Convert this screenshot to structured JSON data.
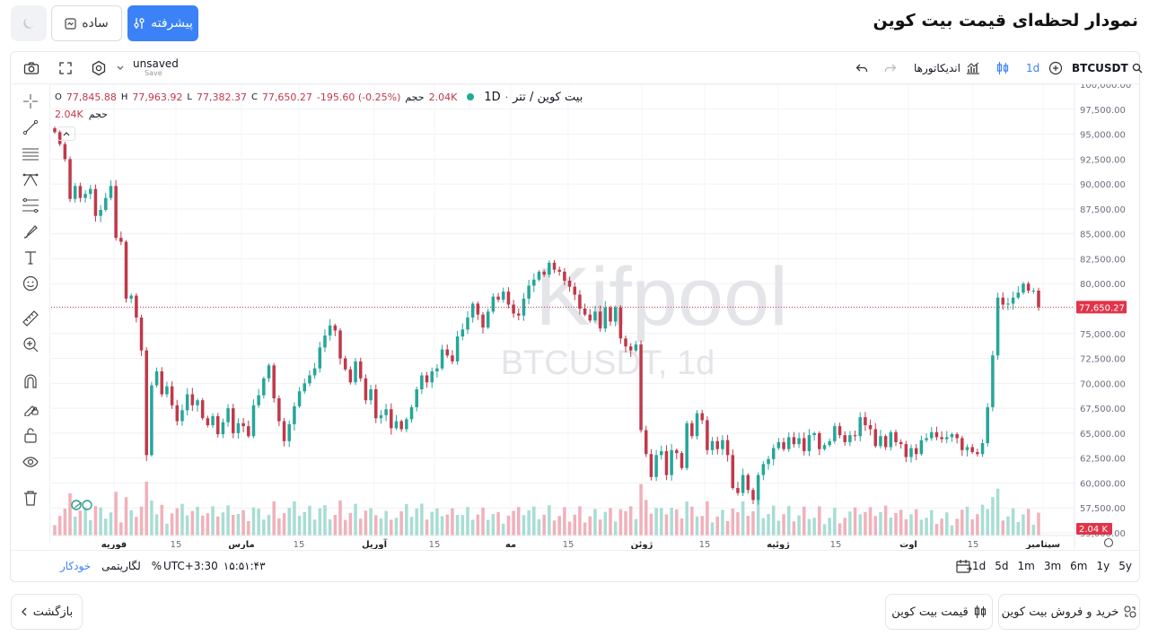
{
  "header": {
    "title": "نمودار لحظه‌ای قیمت بیت کوین",
    "advanced_label": "پیشرفته",
    "simple_label": "ساده"
  },
  "toolbar": {
    "symbol": "BTCUSDT",
    "interval": "1d",
    "indicators_label": "اندیکاتورها",
    "layout_name": "unsaved",
    "save_label": "Save"
  },
  "legend": {
    "pair_name": "بیت کوین / تتر",
    "interval": "1D",
    "open": "77,845.88",
    "open_prefix": "O",
    "high": "77,963.92",
    "high_prefix": "H",
    "low": "77,382.37",
    "low_prefix": "L",
    "close": "77,650.27",
    "close_prefix": "C",
    "change": "-195.60 (-0.25%)",
    "volume_label": "حجم",
    "volume_value": "2.04K",
    "volume_row_label": "حجم",
    "volume_row_value": "2.04K"
  },
  "watermark": {
    "brand": "Kifpool",
    "symbol": "BTCUSDT, 1d"
  },
  "footer": {
    "timeframes": [
      "5y",
      "1y",
      "6m",
      "3m",
      "1m",
      "5d",
      "1d"
    ],
    "timezone": "UTC+3:30",
    "clock": "۱۵:۵۱:۴۳",
    "percent_label": "%",
    "log_label": "لگاریتمی",
    "auto_label": "خودکار"
  },
  "bottom": {
    "back_label": "بازگشت",
    "price_label": "قیمت بیت کوین",
    "trade_label": "خرید و فروش بیت کوین"
  },
  "colors": {
    "accent": "#3b82f6",
    "up": "#26a69a",
    "down": "#c0394a",
    "last_price_bg": "#e0344a"
  },
  "chart_data": {
    "type": "candlestick",
    "y_axis_ticks": [
      "100,000.00",
      "97,500.00",
      "95,000.00",
      "92,500.00",
      "90,000.00",
      "87,500.00",
      "85,000.00",
      "82,500.00",
      "80,000.00",
      "77,500.00",
      "75,000.00",
      "72,500.00",
      "70,000.00",
      "67,500.00",
      "65,000.00",
      "62,500.00",
      "60,000.00",
      "57,500.00",
      "55,000.00"
    ],
    "y_range": [
      55000,
      100000
    ],
    "last_price": 77650.27,
    "last_price_label": "77,650.27",
    "last_volume_label": "2.04 K",
    "x_axis_ticks": [
      "فوریه",
      "15",
      "مارس",
      "15",
      "آوریل",
      "15",
      "مه",
      "15",
      "ژوئن",
      "15",
      "ژوئیه",
      "15",
      "اوت",
      "15",
      "سپتامبر"
    ],
    "closes": [
      95200,
      94000,
      92500,
      88500,
      89800,
      88600,
      89000,
      89500,
      86800,
      87400,
      88600,
      89800,
      84600,
      84200,
      78500,
      78800,
      76600,
      73300,
      62800,
      69800,
      71200,
      68900,
      69700,
      67800,
      66200,
      67300,
      68900,
      67800,
      68300,
      66500,
      65800,
      66700,
      64900,
      66100,
      67500,
      65000,
      66000,
      65700,
      64700,
      67800,
      68800,
      70500,
      71800,
      68500,
      66200,
      64200,
      65900,
      67700,
      69200,
      70000,
      70800,
      71500,
      73600,
      74800,
      75800,
      75300,
      72500,
      71400,
      70100,
      72200,
      70500,
      68300,
      69400,
      66500,
      66800,
      67400,
      65500,
      66200,
      65400,
      66400,
      67600,
      69400,
      70800,
      70100,
      71200,
      71500,
      73400,
      72800,
      72200,
      74700,
      75400,
      76600,
      78000,
      76900,
      75600,
      77200,
      78700,
      78400,
      79200,
      77900,
      77000,
      76800,
      78500,
      79800,
      80400,
      81200,
      80900,
      82100,
      81400,
      81200,
      80300,
      79700,
      78900,
      77500,
      76900,
      76300,
      77200,
      75500,
      77600,
      76200,
      77600,
      74500,
      73700,
      73300,
      73900,
      65300,
      62900,
      60600,
      62800,
      63200,
      60800,
      63300,
      63000,
      61500,
      66000,
      64700,
      67000,
      66300,
      63300,
      64200,
      63400,
      64300,
      62800,
      59500,
      59000,
      60800,
      59300,
      58300,
      60800,
      61900,
      62400,
      63500,
      64100,
      63400,
      64600,
      63900,
      64500,
      63200,
      64800,
      65000,
      63400,
      63800,
      64200,
      65700,
      64800,
      64100,
      64800,
      64700,
      66600,
      65800,
      65400,
      63700,
      64700,
      63600,
      65100,
      64100,
      63900,
      62600,
      63500,
      62900,
      64300,
      64500,
      65100,
      64600,
      64400,
      64600,
      64900,
      64500,
      63300,
      63600,
      63100,
      62900,
      64000,
      67600,
      72800,
      78600,
      77900,
      78000,
      78600,
      79100,
      80000,
      79300,
      79300,
      77650
    ]
  }
}
